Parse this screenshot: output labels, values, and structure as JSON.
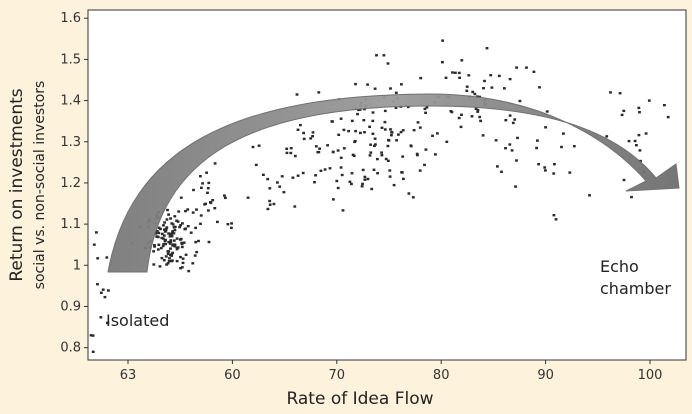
{
  "chart_data": {
    "type": "scatter",
    "title": "",
    "xlabel": "Rate of Idea Flow",
    "ylabel": "Return on investments",
    "ylabel_sub": "social vs. non-social investors",
    "x_tick_labels": [
      "63",
      "60",
      "70",
      "80",
      "90",
      "100"
    ],
    "y_ticks": [
      0.8,
      0.9,
      1.0,
      1.1,
      1.2,
      1.3,
      1.4,
      1.5,
      1.6
    ],
    "y_tick_labels": [
      "0.8",
      "0.9",
      "1",
      "1.1",
      "1.2",
      "1.3",
      "1.4",
      "1.5",
      "1.6"
    ],
    "xlim": [
      47,
      104
    ],
    "ylim": [
      0.77,
      1.62
    ],
    "grid": false,
    "legend": "none",
    "annotations": {
      "isolated": "Isolated",
      "echo_line1": "Echo",
      "echo_line2": "chamber"
    },
    "arrow_color": "#8c8c8c",
    "point_color": "#2b2b2b",
    "clusters": [
      {
        "x": 48.5,
        "y": 0.92,
        "sx": 0.8,
        "sy": 0.06,
        "n": 10
      },
      {
        "x": 54.8,
        "y": 1.06,
        "sx": 1.1,
        "sy": 0.035,
        "n": 130
      },
      {
        "x": 58.8,
        "y": 1.16,
        "sx": 1.3,
        "sy": 0.05,
        "n": 28
      },
      {
        "x": 65.0,
        "y": 1.22,
        "sx": 1.6,
        "sy": 0.06,
        "n": 22
      },
      {
        "x": 68.5,
        "y": 1.3,
        "sx": 1.6,
        "sy": 0.05,
        "n": 14
      },
      {
        "x": 74.0,
        "y": 1.3,
        "sx": 2.6,
        "sy": 0.07,
        "n": 120
      },
      {
        "x": 83.0,
        "y": 1.41,
        "sx": 1.8,
        "sy": 0.05,
        "n": 40
      },
      {
        "x": 87.5,
        "y": 1.33,
        "sx": 2.0,
        "sy": 0.09,
        "n": 25
      },
      {
        "x": 91.5,
        "y": 1.27,
        "sx": 1.5,
        "sy": 0.06,
        "n": 10
      },
      {
        "x": 98.5,
        "y": 1.32,
        "sx": 1.5,
        "sy": 0.06,
        "n": 16
      }
    ],
    "outliers": [
      [
        47.5,
        0.79
      ],
      [
        47.3,
        0.83
      ],
      [
        47.6,
        1.05
      ],
      [
        47.8,
        1.08
      ],
      [
        48.9,
        0.86
      ],
      [
        74.5,
        1.51
      ],
      [
        75.2,
        1.51
      ],
      [
        75.6,
        1.49
      ],
      [
        96.8,
        1.42
      ],
      [
        94.8,
        1.17
      ],
      [
        102.3,
        1.36
      ],
      [
        100.5,
        1.4
      ],
      [
        100.2,
        1.32
      ],
      [
        89.5,
        1.47
      ],
      [
        88.8,
        1.48
      ],
      [
        86.2,
        1.46
      ],
      [
        84.7,
        1.43
      ],
      [
        72.5,
        1.44
      ],
      [
        81.2,
        1.3
      ],
      [
        69.0,
        1.42
      ]
    ]
  }
}
